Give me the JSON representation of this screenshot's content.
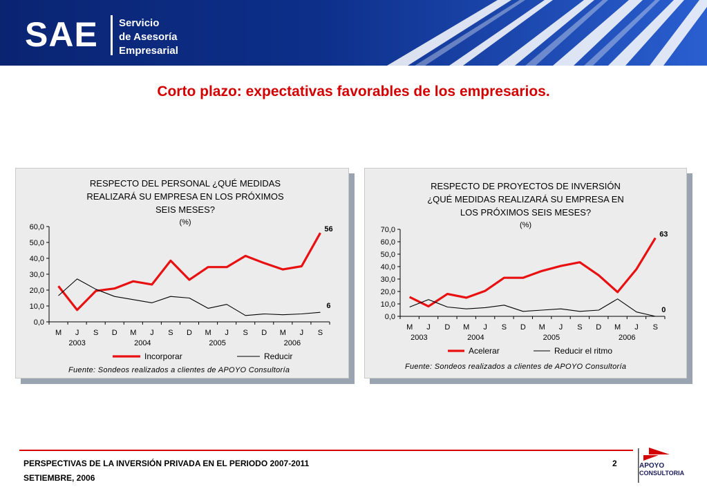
{
  "banner": {
    "logo_text": "SAE",
    "subtitle_lines": [
      "Servicio",
      "de Asesoría",
      "Empresarial"
    ],
    "colors": {
      "dark": "#0b2a7a",
      "mid": "#1e4fc0",
      "light": "#ffffff"
    }
  },
  "page_title": "Corto plazo: expectativas favorables de los empresarios.",
  "charts": [
    {
      "title_lines": [
        "RESPECTO DEL PERSONAL ¿QUÉ MEDIDAS",
        "REALIZARÁ SU EMPRESA EN LOS PRÓXIMOS",
        "SEIS MESES?"
      ],
      "unit": "(%)",
      "source": "Fuente: Sondeos realizados a clientes de APOYO Consultoría"
    },
    {
      "title_lines": [
        "RESPECTO DE PROYECTOS DE INVERSIÓN",
        "¿QUÉ MEDIDAS REALIZARÁ SU EMPRESA EN",
        "LOS PRÓXIMOS SEIS MESES?"
      ],
      "unit": "(%)",
      "source": "Fuente: Sondeos realizados a clientes de APOYO Consultoría"
    }
  ],
  "chart_data": [
    {
      "type": "line",
      "x": [
        "M",
        "J",
        "S",
        "D",
        "M",
        "J",
        "S",
        "D",
        "M",
        "J",
        "S",
        "D",
        "M",
        "J",
        "S"
      ],
      "year_labels": [
        "2003",
        "2004",
        "2005",
        "2006"
      ],
      "ylim": [
        0,
        60
      ],
      "yticks": [
        "0,0",
        "10,0",
        "20,0",
        "30,0",
        "40,0",
        "50,0",
        "60,0"
      ],
      "series": [
        {
          "name": "Incorporar",
          "color": "#e81010",
          "values": [
            22.5,
            7.5,
            19.5,
            21,
            25.5,
            23.5,
            38.5,
            26.5,
            34.5,
            34.5,
            41.5,
            37,
            33,
            35,
            56
          ],
          "end_label": "56"
        },
        {
          "name": "Reducir",
          "color": "#000000",
          "values": [
            16.5,
            27,
            20.5,
            16,
            14,
            12,
            16,
            15,
            8.5,
            11,
            4,
            5,
            4.5,
            5,
            6
          ],
          "end_label": "6"
        }
      ],
      "legend_placement": "bottom"
    },
    {
      "type": "line",
      "x": [
        "M",
        "J",
        "D",
        "M",
        "J",
        "S",
        "D",
        "M",
        "J",
        "S",
        "D",
        "M",
        "J",
        "S"
      ],
      "year_labels": [
        "2003",
        "2004",
        "2005",
        "2006"
      ],
      "ylim": [
        0,
        70
      ],
      "yticks": [
        "0,0",
        "10,0",
        "20,0",
        "30,0",
        "40,0",
        "50,0",
        "60,0",
        "70,0"
      ],
      "series": [
        {
          "name": "Acelerar",
          "color": "#e81010",
          "values": [
            15.5,
            8,
            18,
            15,
            20.5,
            31,
            31,
            36.5,
            40.5,
            43.5,
            33,
            19.5,
            38,
            63
          ],
          "end_label": "63"
        },
        {
          "name": "Reducir el ritmo",
          "color": "#000000",
          "values": [
            7.5,
            13.5,
            7.5,
            6,
            7,
            9,
            4,
            5,
            6,
            4,
            5,
            14,
            3.5,
            0
          ],
          "end_label": "0"
        }
      ],
      "legend_placement": "bottom"
    }
  ],
  "footer": {
    "line1": "PERSPECTIVAS DE LA INVERSIÓN PRIVADA EN EL PERIODO 2007-2011",
    "line2": "SETIEMBRE, 2006",
    "page_number": "2",
    "logo_lines": [
      "APOYO",
      "CONSULTORIA"
    ]
  }
}
